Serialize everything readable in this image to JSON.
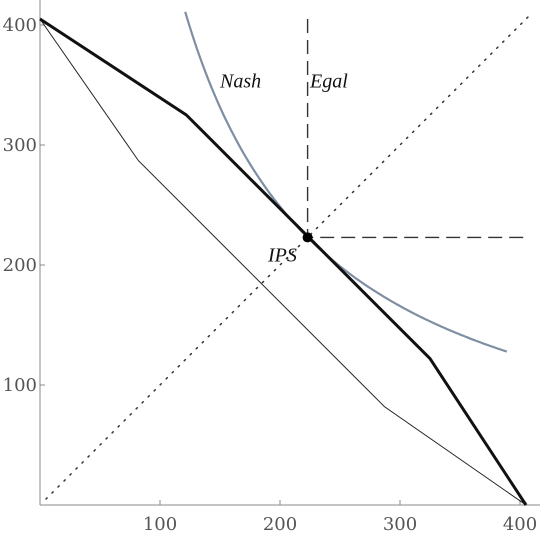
{
  "chart_data": {
    "type": "line",
    "title": "",
    "xlabel": "",
    "ylabel": "",
    "xlim": [
      0,
      420
    ],
    "ylim": [
      0,
      420
    ],
    "x_ticks": [
      100,
      200,
      300,
      400
    ],
    "y_ticks": [
      100,
      200,
      300,
      400
    ],
    "x_tick_labels": [
      "100",
      "200",
      "300",
      "400"
    ],
    "y_tick_labels": [
      "100",
      "200",
      "300",
      "400"
    ],
    "grid": false,
    "legend": "none",
    "series": [
      {
        "style": "thick-black",
        "color": "#111111",
        "points": [
          [
            0,
            405
          ],
          [
            122,
            325
          ],
          [
            325,
            122
          ],
          [
            405,
            0
          ]
        ]
      },
      {
        "style": "thin-black",
        "color": "#222222",
        "points": [
          [
            0,
            405
          ],
          [
            82,
            287
          ],
          [
            287,
            82
          ],
          [
            405,
            0
          ]
        ]
      },
      {
        "style": "nash-curve",
        "color": "#7f8fa3",
        "function": "x*y = 49729",
        "x_range": [
          121,
          390
        ]
      },
      {
        "style": "dotted-diagonal",
        "color": "#333333",
        "points": [
          [
            5,
            5
          ],
          [
            408,
            408
          ]
        ]
      },
      {
        "style": "egal-dashed",
        "color": "#333333",
        "polyline": [
          [
            223,
            405
          ],
          [
            223,
            223
          ],
          [
            408,
            223
          ]
        ]
      }
    ],
    "point": {
      "x": 223,
      "y": 223,
      "label": "IPS"
    },
    "annotations": [
      {
        "text": "Nash",
        "x": 150,
        "y": 348
      },
      {
        "text": "Egal",
        "x": 225,
        "y": 348
      },
      {
        "text": "IPS",
        "x": 190,
        "y": 203
      }
    ]
  }
}
